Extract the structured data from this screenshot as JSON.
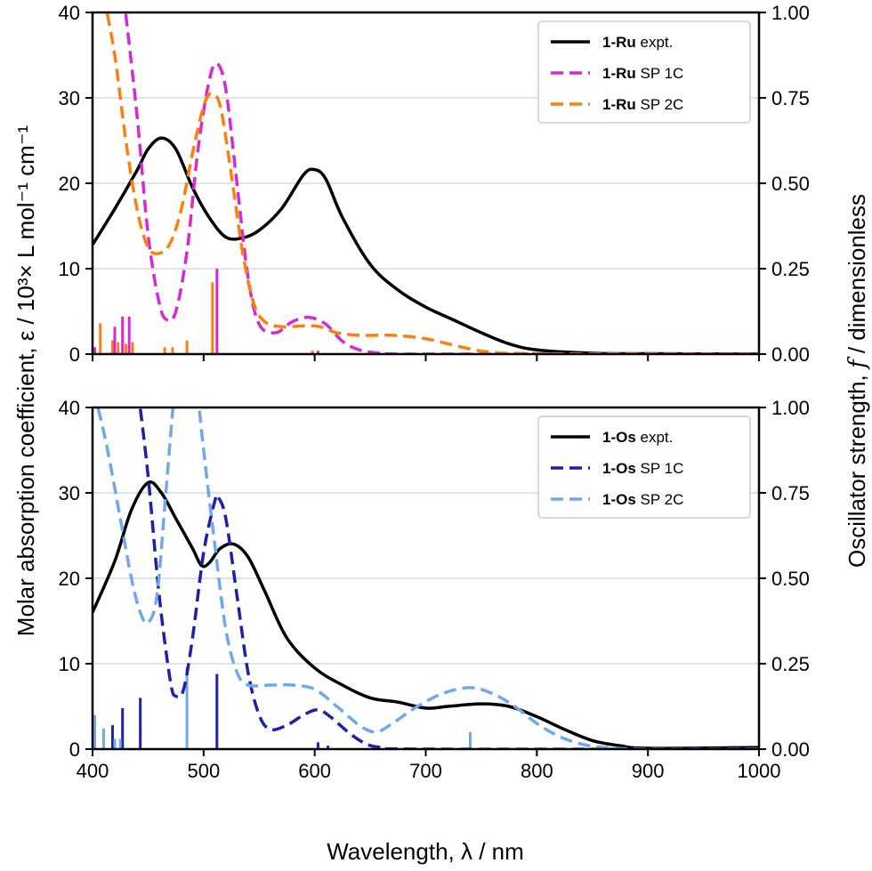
{
  "chart_data": [
    {
      "type": "line",
      "panel": "top",
      "ylim": [
        0,
        40
      ],
      "y2lim": [
        0,
        1.0
      ],
      "xlim": [
        400,
        1000
      ],
      "grid": "horizontal",
      "legend_position": "top-right",
      "yticks": [
        "0",
        "10",
        "20",
        "30",
        "40"
      ],
      "y2ticks": [
        "0.00",
        "0.25",
        "0.50",
        "0.75",
        "1.00"
      ],
      "series": [
        {
          "name_bold": "1-Ru",
          "name_rest": " expt.",
          "color": "#000000",
          "dash": false,
          "x": [
            400,
            420,
            440,
            450,
            462,
            475,
            490,
            505,
            520,
            535,
            550,
            570,
            590,
            600,
            610,
            625,
            650,
            675,
            700,
            725,
            750,
            775,
            800,
            850,
            900,
            1000
          ],
          "y": [
            12.8,
            17,
            21.5,
            24,
            25.3,
            24,
            19.5,
            16,
            13.7,
            13.6,
            14.5,
            17,
            21,
            21.6,
            20.5,
            16,
            10.5,
            7.5,
            5.5,
            4,
            2.5,
            1.2,
            0.5,
            0.1,
            0.05,
            0
          ]
        },
        {
          "name_bold": "1-Ru",
          "name_rest": " SP 1C",
          "color": "#d42ad4",
          "dash": true,
          "x": [
            428,
            440,
            450,
            460,
            467,
            475,
            485,
            495,
            505,
            512,
            520,
            530,
            540,
            550,
            565,
            580,
            595,
            610,
            625,
            640,
            660,
            700,
            1000
          ],
          "y": [
            42,
            28,
            14,
            6,
            4,
            5,
            12,
            24,
            32,
            34,
            31,
            20,
            9,
            3.5,
            2.5,
            3.8,
            4.3,
            3.5,
            1.5,
            0.5,
            0.1,
            0,
            0
          ]
        },
        {
          "name_bold": "1-Ru",
          "name_rest": " SP 2C",
          "color": "#ff7f0e",
          "dash": true,
          "x": [
            410,
            420,
            430,
            440,
            450,
            460,
            470,
            480,
            490,
            500,
            507,
            515,
            525,
            535,
            545,
            555,
            570,
            590,
            605,
            620,
            640,
            670,
            700,
            720,
            740,
            760,
            800,
            1000
          ],
          "y": [
            42,
            35,
            25,
            17,
            12.5,
            11.8,
            13,
            17,
            23.5,
            29,
            30.5,
            29,
            21,
            12,
            6,
            3.8,
            3.2,
            3.3,
            3.2,
            2.5,
            2.2,
            2.2,
            1.8,
            1.2,
            0.6,
            0.2,
            0.05,
            0
          ]
        }
      ],
      "sticks": [
        {
          "color": "#ff7f0e",
          "x": [
            407,
            418,
            423,
            430,
            436,
            465,
            472,
            485,
            508,
            598
          ],
          "f": [
            0.09,
            0.04,
            0.035,
            0.03,
            0.035,
            0.02,
            0.02,
            0.04,
            0.21,
            0.01
          ]
        },
        {
          "color": "#d42ad4",
          "x": [
            402,
            420,
            427,
            433,
            512,
            603
          ],
          "f": [
            0.02,
            0.08,
            0.11,
            0.11,
            0.25,
            0.01
          ]
        }
      ]
    },
    {
      "type": "line",
      "panel": "bottom",
      "ylim": [
        0,
        40
      ],
      "y2lim": [
        0,
        1.0
      ],
      "xlim": [
        400,
        1000
      ],
      "grid": "horizontal",
      "legend_position": "top-right",
      "yticks": [
        "0",
        "10",
        "20",
        "30",
        "40"
      ],
      "y2ticks": [
        "0.00",
        "0.25",
        "0.50",
        "0.75",
        "1.00"
      ],
      "xticks": [
        "400",
        "500",
        "600",
        "700",
        "800",
        "900",
        "1000"
      ],
      "series": [
        {
          "name_bold": "1-Os",
          "name_rest": " expt.",
          "color": "#000000",
          "dash": false,
          "x": [
            400,
            420,
            435,
            450,
            462,
            475,
            490,
            498,
            505,
            515,
            527,
            540,
            555,
            575,
            600,
            625,
            650,
            675,
            700,
            720,
            750,
            775,
            800,
            825,
            850,
            875,
            900,
            1000
          ],
          "y": [
            16,
            22,
            28,
            31.2,
            30,
            27,
            23.5,
            21.5,
            21.8,
            23.5,
            24,
            22.5,
            18.5,
            13,
            9.5,
            7.5,
            6,
            5.5,
            4.8,
            5,
            5.3,
            5,
            3.8,
            2.3,
            1,
            0.4,
            0.1,
            0.2
          ]
        },
        {
          "name_bold": "1-Os",
          "name_rest": " SP 1C",
          "color": "#1f1fa8",
          "dash": true,
          "x": [
            441,
            450,
            460,
            470,
            475,
            482,
            490,
            500,
            510,
            513,
            520,
            530,
            540,
            550,
            560,
            575,
            590,
            603,
            615,
            630,
            645,
            660,
            700,
            1000
          ],
          "y": [
            42,
            32,
            18,
            8,
            6.2,
            7,
            13,
            23,
            29,
            29.5,
            27,
            18,
            9,
            4,
            2.3,
            2.8,
            4,
            4.6,
            3.7,
            2,
            0.7,
            0.2,
            0,
            0
          ]
        },
        {
          "name_bold": "1-Os",
          "name_rest": " SP 2C",
          "color": "#6fa8ec",
          "dash": true,
          "x": [
            401,
            412,
            425,
            435,
            443,
            450,
            458,
            466,
            474,
            480,
            487,
            494,
            500,
            510,
            520,
            530,
            540,
            560,
            580,
            600,
            620,
            640,
            655,
            670,
            690,
            715,
            740,
            760,
            780,
            800,
            820,
            840,
            860,
            900,
            1000
          ],
          "y": [
            42,
            36,
            27,
            20,
            16,
            14.8,
            18,
            30,
            42,
            46,
            46,
            42,
            35,
            24,
            14,
            9,
            7.5,
            7.5,
            7.5,
            7,
            5,
            2.8,
            2,
            3,
            4.8,
            6.5,
            7.2,
            6.5,
            5,
            3,
            1.5,
            0.6,
            0.2,
            0,
            0
          ]
        }
      ],
      "sticks": [
        {
          "color": "#1f1fa8",
          "x": [
            418,
            427,
            443,
            512,
            603,
            612
          ],
          "f": [
            0.07,
            0.12,
            0.15,
            0.22,
            0.02,
            0.01
          ]
        },
        {
          "color": "#6fa8ec",
          "x": [
            402,
            410,
            420,
            425,
            485,
            740
          ],
          "f": [
            0.1,
            0.06,
            0.03,
            0.03,
            0.24,
            0.05
          ]
        }
      ]
    }
  ],
  "labels": {
    "xlabel": "Wavelength, λ / nm",
    "ylabel": "Molar absorption coefficient, ε / 10³× L mol⁻¹ cm⁻¹",
    "y2label_pre": "Oscillator strength, ",
    "y2label_f": "f",
    "y2label_post": " / dimensionless"
  }
}
